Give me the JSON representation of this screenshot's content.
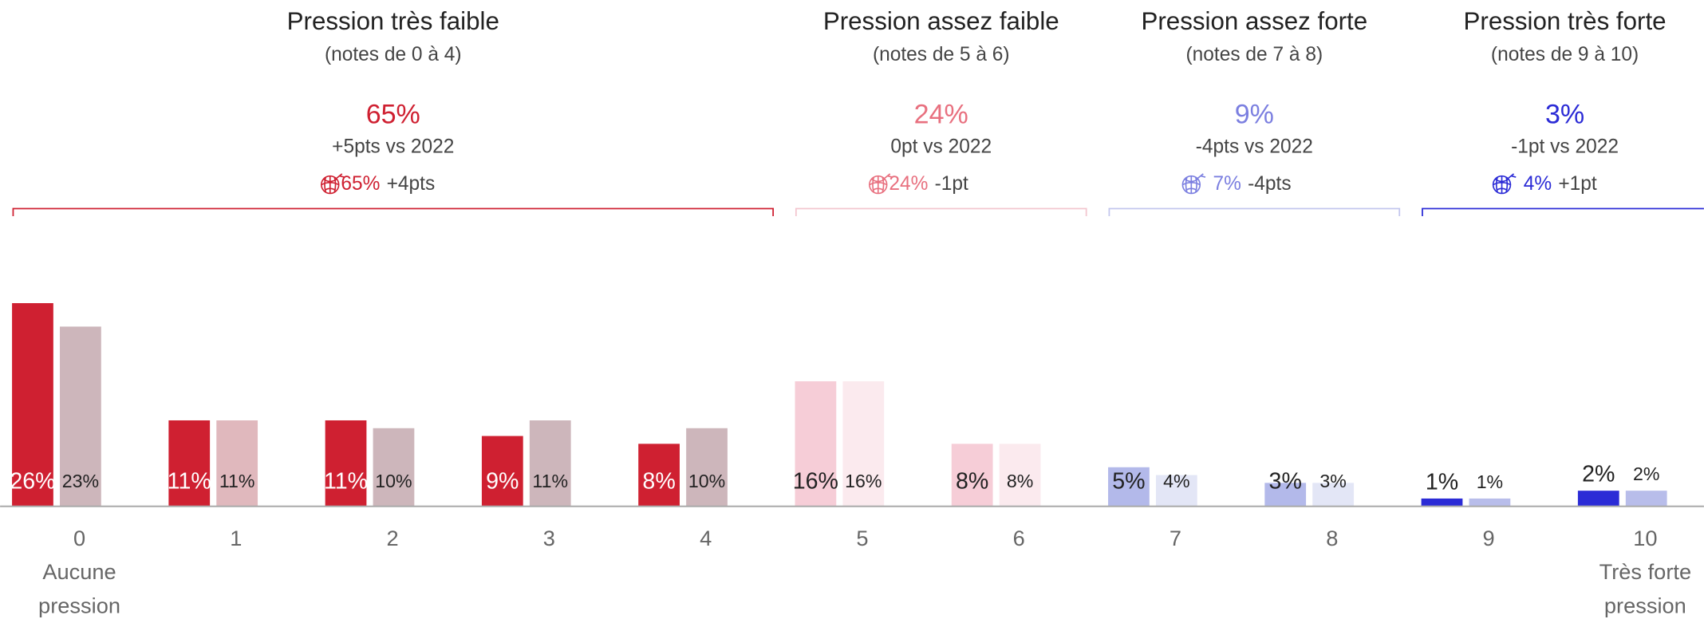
{
  "chart_data": {
    "type": "bar",
    "categories": [
      "0",
      "1",
      "2",
      "3",
      "4",
      "5",
      "6",
      "7",
      "8",
      "9",
      "10"
    ],
    "category_notes": [
      {
        "category": "0",
        "text": "Aucune pression"
      },
      {
        "category": "10",
        "text": "Très forte pression"
      }
    ],
    "series": [
      {
        "values": [
          26,
          11,
          11,
          9,
          8,
          16,
          8,
          5,
          3,
          1,
          2
        ],
        "value_labels": [
          "26%",
          "11%",
          "11%",
          "9%",
          "8%",
          "16%",
          "8%",
          "5%",
          "3%",
          "1%",
          "2%"
        ],
        "colors": [
          "#cf2031",
          "#cf2031",
          "#cf2031",
          "#cf2031",
          "#cf2031",
          "#f6cdd7",
          "#f6cdd7",
          "#b3b9ea",
          "#b3b9ea",
          "#2b2bd6",
          "#2b2bd6"
        ]
      },
      {
        "values": [
          23,
          11,
          10,
          11,
          10,
          16,
          8,
          4,
          3,
          1,
          2
        ],
        "value_labels": [
          "23%",
          "11%",
          "10%",
          "11%",
          "10%",
          "16%",
          "8%",
          "4%",
          "3%",
          "1%",
          "2%"
        ],
        "colors": [
          "#cdb6bb",
          "#e0b8bd",
          "#cdb6bb",
          "#cdb6bb",
          "#cdb6bb",
          "#fbeaee",
          "#fbeaee",
          "#e3e6f6",
          "#e3e6f6",
          "#b8bdea",
          "#b8bdea"
        ]
      }
    ],
    "groups": [
      {
        "title": "Pression très faible",
        "subtitle": "(notes de 0 à 4)",
        "share": "65%",
        "change": "+5pts vs 2022",
        "icon_share": "65%",
        "icon_change": "+4pts",
        "color": "#cf2031",
        "bracket_color": "#cf2031",
        "span": [
          "0",
          "4"
        ]
      },
      {
        "title": "Pression assez faible",
        "subtitle": "(notes de 5 à 6)",
        "share": "24%",
        "change": "0pt vs 2022",
        "icon_share": "24%",
        "icon_change": "-1pt",
        "color": "#e8707f",
        "bracket_color": "#f3c6cf",
        "span": [
          "5",
          "6"
        ]
      },
      {
        "title": "Pression assez forte",
        "subtitle": "(notes de 7 à 8)",
        "share": "9%",
        "change": "-4pts vs 2022",
        "icon_share": "7%",
        "icon_change": "-4pts",
        "color": "#7b7fe0",
        "bracket_color": "#c3c6ee",
        "span": [
          "7",
          "8"
        ]
      },
      {
        "title": "Pression très forte",
        "subtitle": "(notes de 9 à 10)",
        "share": "3%",
        "change": "-1pt vs 2022",
        "icon_share": "4%",
        "icon_change": "+1pt",
        "color": "#2b2bd6",
        "bracket_color": "#2b2bd6",
        "span": [
          "9",
          "10"
        ]
      }
    ]
  }
}
